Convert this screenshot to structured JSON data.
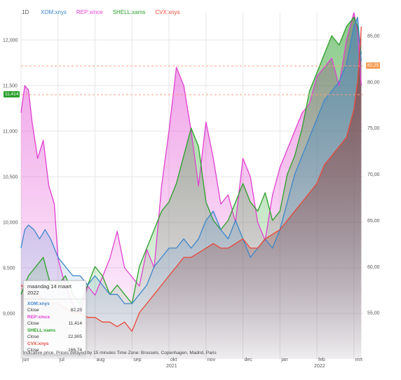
{
  "interval": "1D",
  "legend": [
    {
      "label": "XOM:xnys",
      "color": "#3d86c9"
    },
    {
      "label": "REP:xmce",
      "color": "#e040d0"
    },
    {
      "label": "SHELL:xams",
      "color": "#2aa02a"
    },
    {
      "label": "CVX:xnys",
      "color": "#e8473a"
    }
  ],
  "tooltip": {
    "date": "maandag 14 maart 2022",
    "items": [
      {
        "symbol": "XOM:xnys",
        "label": "Close",
        "value": "82,25",
        "color": "#3d86c9"
      },
      {
        "symbol": "REP:xmce",
        "label": "Close",
        "value": "11,414",
        "color": "#e040d0"
      },
      {
        "symbol": "SHELL:xams",
        "label": "Close",
        "value": "22,905",
        "color": "#2aa02a"
      },
      {
        "symbol": "CVX:xnys",
        "label": "Close",
        "value": "166,74",
        "color": "#e8473a"
      }
    ]
  },
  "footer_note": "Indicative price. Prices delayed by 15 minutes   Time Zone: Brussels, Copenhagen, Madrid, Paris",
  "left_price_tag": "11,414",
  "right_price_tag": "82,25",
  "chart_data": {
    "type": "area",
    "x_months": [
      "jun",
      "jul",
      "aug",
      "sep",
      "okt",
      "nov",
      "dec",
      "jan",
      "feb",
      "mrt"
    ],
    "x_year_labels": [
      {
        "month_index": 4,
        "label": "2021"
      },
      {
        "month_index": 8,
        "label": "2022"
      }
    ],
    "left_axis": {
      "ticks": [
        "9,000",
        "9,500",
        "10,000",
        "10,500",
        "11,000",
        "11,500",
        "12,000"
      ],
      "ylim": [
        8500,
        12300
      ]
    },
    "right_axis": {
      "ticks": [
        "55,00",
        "60,00",
        "65,00",
        "70,00",
        "75,00",
        "80,00",
        "85,00"
      ],
      "ylim": [
        50,
        87.5
      ]
    },
    "grid": true,
    "legend_position": "top-left",
    "series": [
      {
        "name": "REP:xmce",
        "axis": "left",
        "color": "#e040d0",
        "x": [
          0.0,
          0.1,
          0.2,
          0.3,
          0.45,
          0.6,
          0.75,
          0.9,
          1.0,
          1.2,
          1.4,
          1.6,
          1.8,
          2.0,
          2.2,
          2.4,
          2.6,
          2.8,
          3.0,
          3.2,
          3.4,
          3.6,
          3.8,
          4.0,
          4.2,
          4.4,
          4.6,
          4.8,
          5.0,
          5.2,
          5.4,
          5.6,
          5.8,
          6.0,
          6.2,
          6.4,
          6.6,
          6.8,
          7.0,
          7.2,
          7.4,
          7.6,
          7.8,
          8.0,
          8.2,
          8.4,
          8.6,
          8.8,
          9.0,
          9.1,
          9.2
        ],
        "values": [
          11200,
          11500,
          11450,
          11100,
          10700,
          10900,
          10400,
          10200,
          9600,
          9300,
          9100,
          9000,
          9300,
          9200,
          9400,
          9600,
          9900,
          9500,
          9400,
          9300,
          9700,
          9500,
          10400,
          11000,
          11700,
          11500,
          11000,
          10400,
          11100,
          10700,
          10200,
          10300,
          10000,
          10700,
          10500,
          10000,
          9800,
          10300,
          10600,
          10800,
          11000,
          11200,
          11300,
          11600,
          11700,
          11800,
          11500,
          12000,
          12300,
          12100,
          11500
        ]
      },
      {
        "name": "SHELL:xams",
        "axis": "right",
        "color": "#2aa02a",
        "x": [
          0.0,
          0.2,
          0.4,
          0.6,
          0.8,
          1.0,
          1.2,
          1.4,
          1.6,
          1.8,
          2.0,
          2.2,
          2.4,
          2.6,
          2.8,
          3.0,
          3.2,
          3.4,
          3.6,
          3.8,
          4.0,
          4.2,
          4.4,
          4.6,
          4.8,
          5.0,
          5.2,
          5.4,
          5.6,
          5.8,
          6.0,
          6.2,
          6.4,
          6.6,
          6.8,
          7.0,
          7.2,
          7.4,
          7.6,
          7.8,
          8.0,
          8.2,
          8.4,
          8.6,
          8.8,
          9.0,
          9.1,
          9.2
        ],
        "values": [
          57,
          59,
          60,
          61,
          58,
          58,
          59,
          57,
          56,
          58,
          60,
          59,
          57,
          58,
          57,
          56,
          60,
          62,
          64,
          66,
          67,
          69,
          72,
          75,
          73,
          67,
          65,
          64,
          65,
          67,
          69,
          67,
          66,
          68,
          65,
          66,
          70,
          72,
          75,
          79,
          81,
          83,
          85,
          84,
          86,
          87,
          86,
          83
        ]
      },
      {
        "name": "XOM:xnys",
        "axis": "right",
        "color": "#3d86c9",
        "x": [
          0.0,
          0.1,
          0.2,
          0.35,
          0.5,
          0.65,
          0.8,
          1.0,
          1.2,
          1.4,
          1.6,
          1.8,
          2.0,
          2.2,
          2.4,
          2.6,
          2.8,
          3.0,
          3.2,
          3.4,
          3.6,
          3.8,
          4.0,
          4.2,
          4.4,
          4.6,
          4.8,
          5.0,
          5.2,
          5.4,
          5.6,
          5.8,
          6.0,
          6.2,
          6.4,
          6.6,
          6.8,
          7.0,
          7.2,
          7.4,
          7.6,
          7.8,
          8.0,
          8.2,
          8.4,
          8.6,
          8.8,
          9.0,
          9.1,
          9.2
        ],
        "values": [
          62,
          64,
          64.5,
          64,
          63,
          64,
          63,
          61,
          60,
          59,
          59,
          58,
          59,
          58,
          57,
          57,
          56,
          56,
          57,
          58,
          60,
          61,
          62,
          62,
          63,
          62,
          63,
          65,
          66,
          64,
          63,
          65,
          63,
          61,
          62,
          63,
          62,
          64,
          67,
          70,
          72,
          74,
          76,
          78,
          79,
          80,
          82,
          86,
          87,
          82.25
        ]
      },
      {
        "name": "CVX:xnys",
        "axis": "right",
        "color": "#e8473a",
        "x": [
          0.0,
          0.2,
          0.4,
          0.6,
          0.8,
          1.0,
          1.2,
          1.4,
          1.6,
          1.8,
          2.0,
          2.2,
          2.4,
          2.6,
          2.8,
          3.0,
          3.2,
          3.4,
          3.6,
          3.8,
          4.0,
          4.2,
          4.4,
          4.6,
          4.8,
          5.0,
          5.2,
          5.4,
          5.6,
          5.8,
          6.0,
          6.2,
          6.4,
          6.6,
          6.8,
          7.0,
          7.2,
          7.4,
          7.6,
          7.8,
          8.0,
          8.2,
          8.4,
          8.6,
          8.8,
          9.0,
          9.1,
          9.2
        ],
        "values": [
          58,
          57.5,
          57,
          56.5,
          56,
          56,
          55.5,
          55,
          55,
          54.5,
          54.5,
          54,
          54,
          53.5,
          54,
          53,
          55,
          56,
          57,
          58,
          59,
          60,
          61,
          61,
          61.5,
          62,
          62.5,
          62,
          62,
          62.5,
          63,
          62,
          62,
          63,
          63.5,
          64,
          65,
          66,
          67,
          68,
          69,
          71,
          72,
          73,
          74,
          77,
          80,
          86
        ]
      }
    ]
  }
}
